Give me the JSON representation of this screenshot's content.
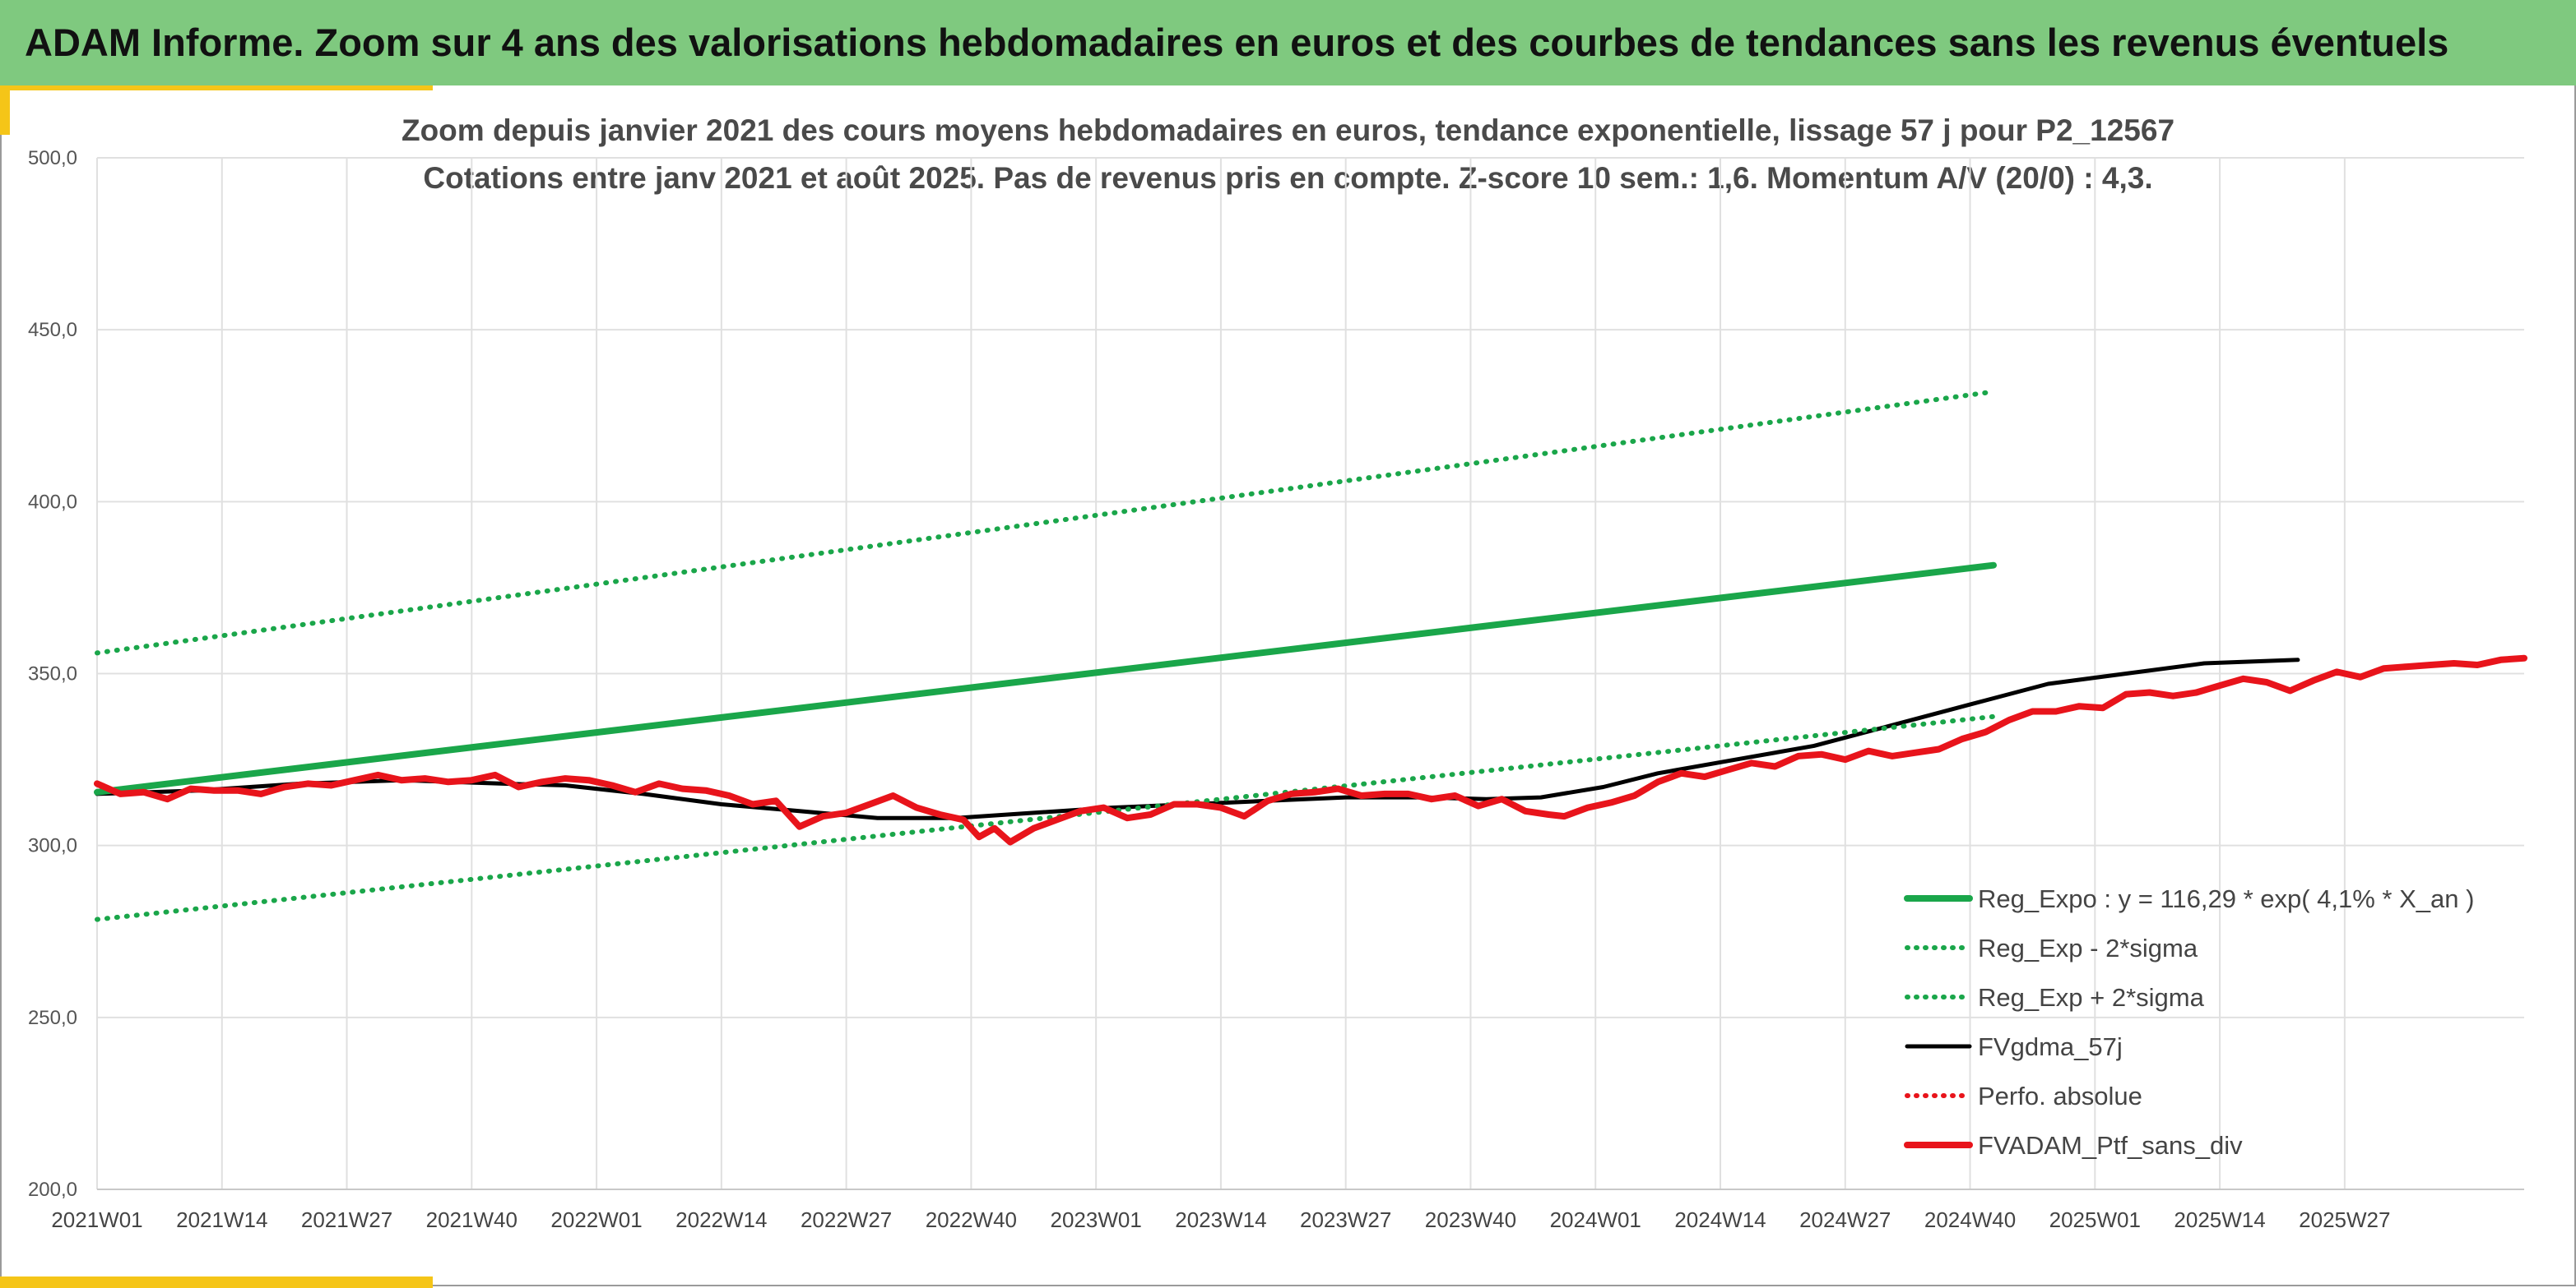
{
  "header": {
    "title": "ADAM Informe. Zoom sur 4 ans des valorisations hebdomadaires en euros et des courbes de tendances sans les revenus éventuels"
  },
  "colors": {
    "banner": "#7fc97f",
    "accent": "#f5c518",
    "trend_green": "#1aa64a",
    "band_green": "#1aa64a",
    "smooth_black": "#000000",
    "price_red": "#e8141b",
    "grid": "#e0e0e0"
  },
  "chart_data": {
    "type": "line",
    "title_line1": "Zoom depuis janvier 2021 des cours moyens hebdomadaires en euros, tendance exponentielle, lissage 57 j pour P2_12567",
    "title_line2": "Cotations entre janv 2021 et août 2025. Pas de revenus pris en compte. Z-score 10 sem.: 1,6. Momentum A/V (20/0) : 4,3.",
    "ylim": [
      200,
      500
    ],
    "y_ticks": [
      "200,0",
      "250,0",
      "300,0",
      "350,0",
      "400,0",
      "450,0",
      "500,0"
    ],
    "x_ticks": [
      "2021W01",
      "2021W14",
      "2021W27",
      "2021W40",
      "2022W01",
      "2022W14",
      "2022W27",
      "2022W40",
      "2023W01",
      "2023W14",
      "2023W27",
      "2023W40",
      "2024W01",
      "2024W14",
      "2024W27",
      "2024W40",
      "2025W01",
      "2025W14",
      "2025W27"
    ],
    "x_weeks": 244,
    "grid": true,
    "legend_position": "bottom-right",
    "series": [
      {
        "name": "Reg_Expo : y = 116,29 * exp( 4,1% *  X_an )",
        "style": "solid-thick",
        "color": "#1aa64a",
        "points": [
          [
            0,
            315.5
          ],
          [
            243,
            381.5
          ]
        ]
      },
      {
        "name": "Reg_Exp - 2*sigma",
        "style": "dotted",
        "color": "#1aa64a",
        "points": [
          [
            0,
            278.5
          ],
          [
            243,
            337.5
          ]
        ]
      },
      {
        "name": "Reg_Exp + 2*sigma",
        "style": "dotted",
        "color": "#1aa64a",
        "points": [
          [
            0,
            356
          ],
          [
            243,
            432
          ]
        ]
      },
      {
        "name": "FVgdma_57j",
        "style": "solid",
        "color": "#000000",
        "points": [
          [
            0,
            315
          ],
          [
            13,
            316
          ],
          [
            26,
            318
          ],
          [
            39,
            319
          ],
          [
            52,
            318
          ],
          [
            60,
            317.5
          ],
          [
            70,
            315
          ],
          [
            80,
            312
          ],
          [
            90,
            310
          ],
          [
            100,
            308
          ],
          [
            110,
            308
          ],
          [
            120,
            309.5
          ],
          [
            130,
            311
          ],
          [
            140,
            312
          ],
          [
            150,
            313
          ],
          [
            160,
            314
          ],
          [
            170,
            314
          ],
          [
            178,
            313.5
          ],
          [
            185,
            314
          ],
          [
            193,
            317
          ],
          [
            200,
            321
          ],
          [
            210,
            325
          ],
          [
            220,
            329
          ],
          [
            230,
            335
          ],
          [
            240,
            341
          ],
          [
            250,
            347
          ],
          [
            260,
            350
          ],
          [
            270,
            353
          ],
          [
            282,
            354
          ]
        ]
      },
      {
        "name": "Perfo. absolue",
        "style": "dotted",
        "color": "#e8141b",
        "points": []
      },
      {
        "name": "FVADAM_Ptf_sans_div",
        "style": "solid-thick",
        "color": "#e8141b",
        "points": [
          [
            0,
            318
          ],
          [
            3,
            315
          ],
          [
            6,
            315.5
          ],
          [
            9,
            313.5
          ],
          [
            12,
            316.5
          ],
          [
            15,
            316
          ],
          [
            18,
            316
          ],
          [
            21,
            315
          ],
          [
            24,
            317
          ],
          [
            27,
            318
          ],
          [
            30,
            317.5
          ],
          [
            33,
            319
          ],
          [
            36,
            320.5
          ],
          [
            39,
            319
          ],
          [
            42,
            319.5
          ],
          [
            45,
            318.5
          ],
          [
            48,
            319
          ],
          [
            51,
            320.5
          ],
          [
            54,
            317
          ],
          [
            57,
            318.5
          ],
          [
            60,
            319.5
          ],
          [
            63,
            319
          ],
          [
            66,
            317.5
          ],
          [
            69,
            315.5
          ],
          [
            72,
            318
          ],
          [
            75,
            316.5
          ],
          [
            78,
            316
          ],
          [
            81,
            314.5
          ],
          [
            84,
            312
          ],
          [
            87,
            313
          ],
          [
            90,
            305.5
          ],
          [
            93,
            308.5
          ],
          [
            96,
            309.5
          ],
          [
            99,
            312
          ],
          [
            102,
            314.5
          ],
          [
            105,
            311
          ],
          [
            108,
            309
          ],
          [
            111,
            307.5
          ],
          [
            113,
            302.5
          ],
          [
            115,
            305
          ],
          [
            117,
            301
          ],
          [
            120,
            305
          ],
          [
            123,
            307.5
          ],
          [
            126,
            310
          ],
          [
            129,
            311
          ],
          [
            132,
            308
          ],
          [
            135,
            309
          ],
          [
            138,
            312
          ],
          [
            141,
            312
          ],
          [
            144,
            311
          ],
          [
            147,
            308.5
          ],
          [
            150,
            313
          ],
          [
            153,
            315
          ],
          [
            156,
            315.5
          ],
          [
            159,
            316.5
          ],
          [
            162,
            314.5
          ],
          [
            165,
            315
          ],
          [
            168,
            315
          ],
          [
            171,
            313.5
          ],
          [
            174,
            314.5
          ],
          [
            177,
            311.5
          ],
          [
            180,
            313.5
          ],
          [
            183,
            310
          ],
          [
            186,
            309
          ],
          [
            188,
            308.5
          ],
          [
            191,
            311
          ],
          [
            194,
            312.5
          ],
          [
            197,
            314.5
          ],
          [
            200,
            318.5
          ],
          [
            203,
            321
          ],
          [
            206,
            320
          ],
          [
            209,
            322
          ],
          [
            212,
            324
          ],
          [
            215,
            323
          ],
          [
            218,
            326
          ],
          [
            221,
            326.5
          ],
          [
            224,
            325
          ],
          [
            227,
            327.5
          ],
          [
            230,
            326
          ],
          [
            233,
            327
          ],
          [
            236,
            328
          ],
          [
            239,
            331
          ],
          [
            242,
            333
          ],
          [
            245,
            336.5
          ],
          [
            248,
            339
          ],
          [
            251,
            339
          ],
          [
            254,
            340.5
          ],
          [
            257,
            340
          ],
          [
            260,
            344
          ],
          [
            263,
            344.5
          ],
          [
            266,
            343.5
          ],
          [
            269,
            344.5
          ],
          [
            272,
            346.5
          ],
          [
            275,
            348.5
          ],
          [
            278,
            347.5
          ],
          [
            281,
            345
          ],
          [
            284,
            348
          ],
          [
            287,
            350.5
          ],
          [
            290,
            349
          ],
          [
            293,
            351.5
          ],
          [
            296,
            352
          ],
          [
            299,
            352.5
          ],
          [
            302,
            353
          ],
          [
            305,
            352.5
          ],
          [
            308,
            354
          ],
          [
            311,
            354.5
          ]
        ]
      }
    ]
  }
}
